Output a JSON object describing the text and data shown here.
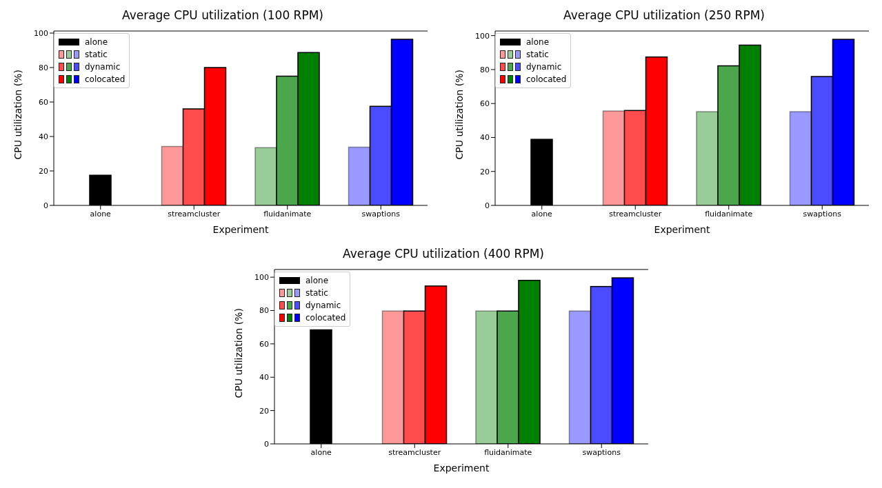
{
  "chart_data": [
    {
      "type": "bar",
      "title": "Average CPU utilization (100 RPM)",
      "xlabel": "Experiment",
      "ylabel": "CPU utilization (%)",
      "categories": [
        "alone",
        "streamcluster",
        "fluidanimate",
        "swaptions"
      ],
      "ylim": [
        0,
        101.2
      ],
      "yticks": [
        0,
        20,
        40,
        60,
        80,
        100
      ],
      "grid": false,
      "legend": "top left",
      "series": [
        {
          "name": "alone",
          "color": "#000000",
          "values": [
            17.5,
            null,
            null,
            null
          ]
        },
        {
          "name": "static",
          "colors": [
            null,
            "#ff9999",
            "#99cc99",
            "#9999ff"
          ],
          "values": [
            null,
            34.2,
            33.5,
            33.8
          ]
        },
        {
          "name": "dynamic",
          "colors": [
            null,
            "#ff4c4c",
            "#4ca64c",
            "#4c4cff"
          ],
          "values": [
            null,
            56,
            75,
            57.5
          ]
        },
        {
          "name": "colocated",
          "colors": [
            null,
            "#ff0000",
            "#008000",
            "#0000ff"
          ],
          "values": [
            null,
            80,
            88.7,
            96.4
          ]
        }
      ]
    },
    {
      "type": "bar",
      "title": "Average CPU utilization (250 RPM)",
      "xlabel": "Experiment",
      "ylabel": "CPU utilization (%)",
      "categories": [
        "alone",
        "streamcluster",
        "fluidanimate",
        "swaptions"
      ],
      "ylim": [
        0,
        102.7
      ],
      "yticks": [
        0,
        20,
        40,
        60,
        80,
        100
      ],
      "grid": false,
      "legend": "top left",
      "series": [
        {
          "name": "alone",
          "color": "#000000",
          "values": [
            38.9,
            null,
            null,
            null
          ]
        },
        {
          "name": "static",
          "colors": [
            null,
            "#ff9999",
            "#99cc99",
            "#9999ff"
          ],
          "values": [
            null,
            55.6,
            55.2,
            55.2
          ]
        },
        {
          "name": "dynamic",
          "colors": [
            null,
            "#ff4c4c",
            "#4ca64c",
            "#4c4cff"
          ],
          "values": [
            null,
            55.9,
            82.2,
            75.9
          ]
        },
        {
          "name": "colocated",
          "colors": [
            null,
            "#ff0000",
            "#008000",
            "#0000ff"
          ],
          "values": [
            null,
            87.4,
            94.4,
            97.8
          ]
        }
      ]
    },
    {
      "type": "bar",
      "title": "Average CPU utilization (400 RPM)",
      "xlabel": "Experiment",
      "ylabel": "CPU utilization (%)",
      "categories": [
        "alone",
        "streamcluster",
        "fluidanimate",
        "swaptions"
      ],
      "ylim": [
        0,
        104.6
      ],
      "yticks": [
        0,
        20,
        40,
        60,
        80,
        100
      ],
      "grid": false,
      "legend": "top left",
      "series": [
        {
          "name": "alone",
          "color": "#000000",
          "values": [
            68.4,
            null,
            null,
            null
          ]
        },
        {
          "name": "static",
          "colors": [
            null,
            "#ff9999",
            "#99cc99",
            "#9999ff"
          ],
          "values": [
            null,
            79.7,
            79.7,
            79.7
          ]
        },
        {
          "name": "dynamic",
          "colors": [
            null,
            "#ff4c4c",
            "#4ca64c",
            "#4c4cff"
          ],
          "values": [
            null,
            79.7,
            79.7,
            94.4
          ]
        },
        {
          "name": "colocated",
          "colors": [
            null,
            "#ff0000",
            "#008000",
            "#0000ff"
          ],
          "values": [
            null,
            94.7,
            98.1,
            99.6
          ]
        }
      ]
    }
  ]
}
